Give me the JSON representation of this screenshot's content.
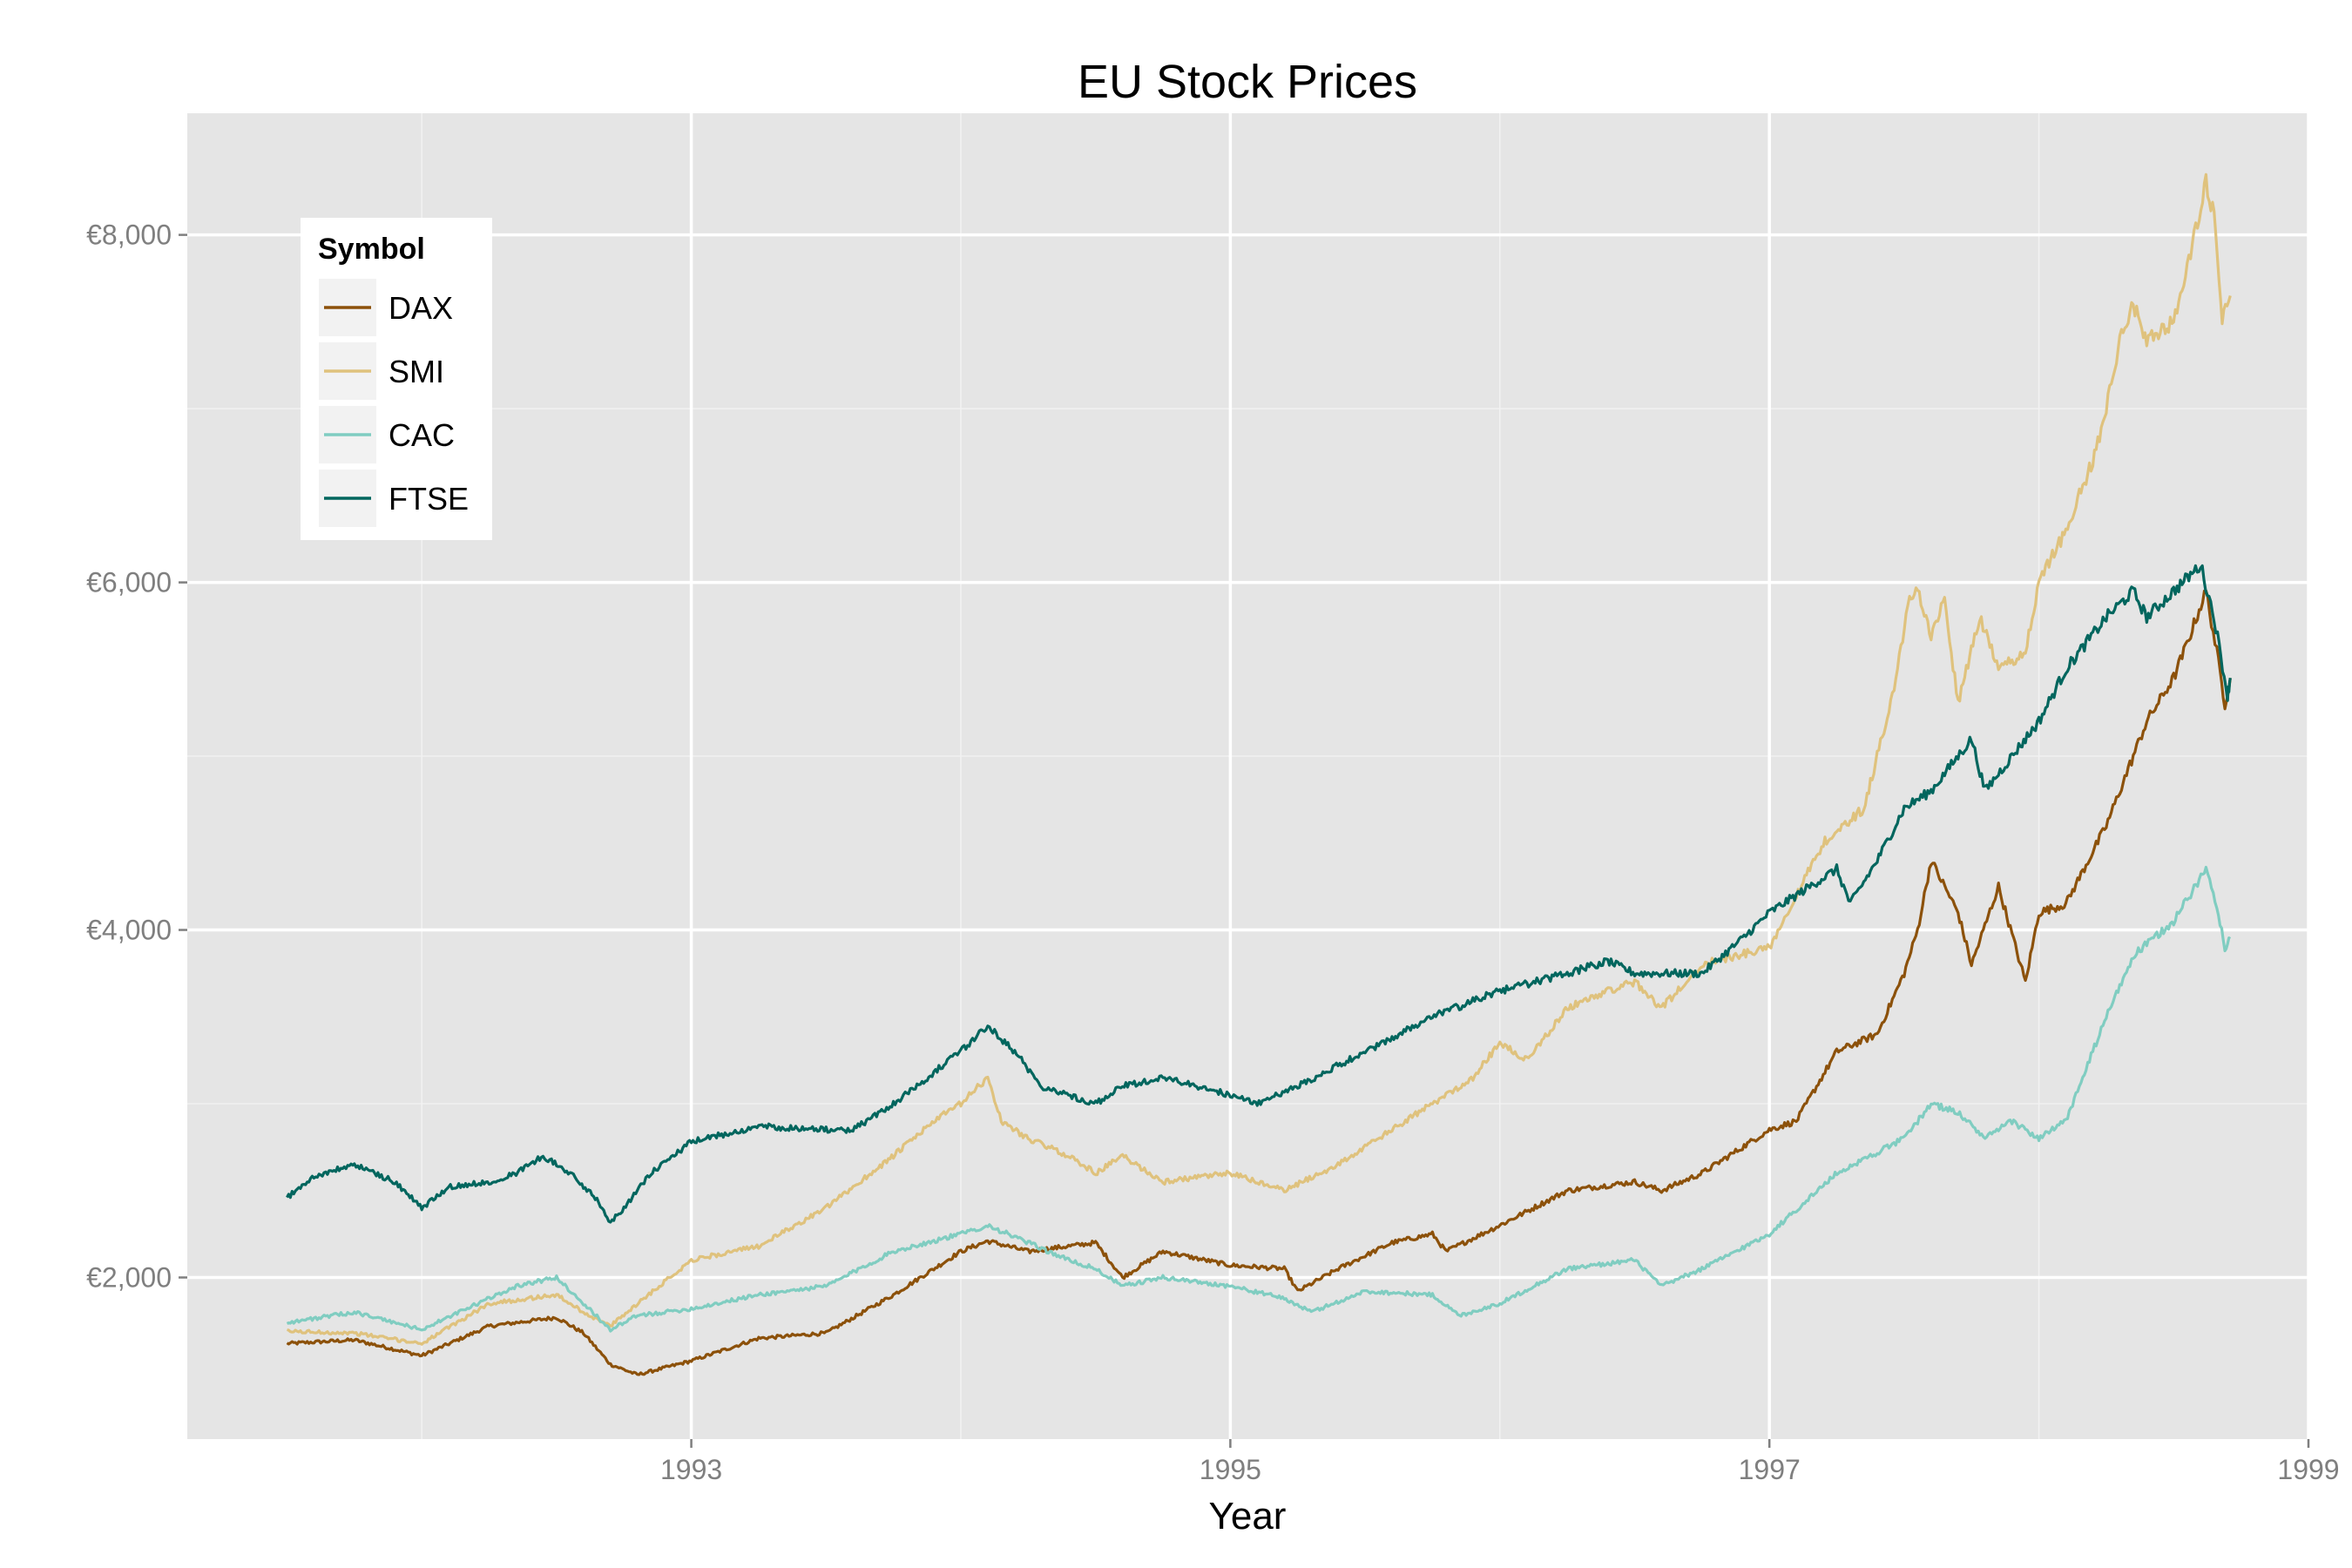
{
  "chart_data": {
    "type": "line",
    "title": "EU Stock Prices",
    "xlabel": "Year",
    "ylabel": "",
    "xlim": [
      1991.13,
      1999.0
    ],
    "ylim": [
      1070,
      8700
    ],
    "x_ticks": [
      1993,
      1995,
      1997,
      1999
    ],
    "x_tick_labels": [
      "1993",
      "1995",
      "1997",
      "1999"
    ],
    "x_minor_ticks": [
      1992,
      1994,
      1996,
      1998
    ],
    "y_ticks": [
      2000,
      4000,
      6000,
      8000
    ],
    "y_tick_labels": [
      "€2,000",
      "€4,000",
      "€6,000",
      "€8,000"
    ],
    "y_minor_ticks": [
      3000,
      5000,
      7000
    ],
    "grid": true,
    "legend": {
      "title": "Symbol",
      "position": "top-left",
      "entries": [
        "DAX",
        "SMI",
        "CAC",
        "FTSE"
      ]
    },
    "series": [
      {
        "name": "DAX",
        "color": "#8c510a",
        "points": [
          [
            1991.5,
            1620
          ],
          [
            1991.75,
            1640
          ],
          [
            1992.0,
            1550
          ],
          [
            1992.25,
            1720
          ],
          [
            1992.5,
            1770
          ],
          [
            1992.6,
            1680
          ],
          [
            1992.7,
            1500
          ],
          [
            1992.8,
            1440
          ],
          [
            1993.0,
            1520
          ],
          [
            1993.25,
            1650
          ],
          [
            1993.5,
            1680
          ],
          [
            1993.75,
            1900
          ],
          [
            1994.0,
            2150
          ],
          [
            1994.1,
            2210
          ],
          [
            1994.25,
            2150
          ],
          [
            1994.5,
            2200
          ],
          [
            1994.6,
            2000
          ],
          [
            1994.75,
            2150
          ],
          [
            1995.0,
            2070
          ],
          [
            1995.2,
            2050
          ],
          [
            1995.25,
            1920
          ],
          [
            1995.4,
            2050
          ],
          [
            1995.6,
            2200
          ],
          [
            1995.75,
            2250
          ],
          [
            1995.8,
            2150
          ],
          [
            1996.0,
            2300
          ],
          [
            1996.25,
            2500
          ],
          [
            1996.5,
            2550
          ],
          [
            1996.6,
            2500
          ],
          [
            1996.75,
            2600
          ],
          [
            1997.0,
            2850
          ],
          [
            1997.1,
            2900
          ],
          [
            1997.25,
            3300
          ],
          [
            1997.4,
            3400
          ],
          [
            1997.5,
            3750
          ],
          [
            1997.55,
            4000
          ],
          [
            1997.6,
            4400
          ],
          [
            1997.7,
            4100
          ],
          [
            1997.75,
            3800
          ],
          [
            1997.85,
            4250
          ],
          [
            1997.95,
            3700
          ],
          [
            1998.0,
            4100
          ],
          [
            1998.1,
            4150
          ],
          [
            1998.25,
            4600
          ],
          [
            1998.4,
            5200
          ],
          [
            1998.5,
            5450
          ],
          [
            1998.55,
            5650
          ],
          [
            1998.62,
            5950
          ],
          [
            1998.66,
            5600
          ],
          [
            1998.69,
            5300
          ],
          [
            1998.71,
            5450
          ]
        ]
      },
      {
        "name": "SMI",
        "color": "#dfc27d",
        "points": [
          [
            1991.5,
            1690
          ],
          [
            1991.75,
            1680
          ],
          [
            1992.0,
            1620
          ],
          [
            1992.25,
            1850
          ],
          [
            1992.5,
            1900
          ],
          [
            1992.6,
            1800
          ],
          [
            1992.7,
            1720
          ],
          [
            1992.8,
            1850
          ],
          [
            1993.0,
            2100
          ],
          [
            1993.25,
            2180
          ],
          [
            1993.5,
            2400
          ],
          [
            1993.75,
            2700
          ],
          [
            1993.9,
            2900
          ],
          [
            1994.0,
            3000
          ],
          [
            1994.1,
            3150
          ],
          [
            1994.15,
            2900
          ],
          [
            1994.25,
            2800
          ],
          [
            1994.4,
            2700
          ],
          [
            1994.5,
            2600
          ],
          [
            1994.6,
            2700
          ],
          [
            1994.75,
            2550
          ],
          [
            1995.0,
            2600
          ],
          [
            1995.2,
            2500
          ],
          [
            1995.4,
            2650
          ],
          [
            1995.6,
            2850
          ],
          [
            1995.75,
            3000
          ],
          [
            1995.9,
            3150
          ],
          [
            1996.0,
            3350
          ],
          [
            1996.1,
            3250
          ],
          [
            1996.25,
            3550
          ],
          [
            1996.4,
            3650
          ],
          [
            1996.5,
            3700
          ],
          [
            1996.6,
            3550
          ],
          [
            1996.75,
            3800
          ],
          [
            1997.0,
            3900
          ],
          [
            1997.1,
            4200
          ],
          [
            1997.2,
            4500
          ],
          [
            1997.35,
            4700
          ],
          [
            1997.45,
            5300
          ],
          [
            1997.52,
            5900
          ],
          [
            1997.55,
            5950
          ],
          [
            1997.6,
            5700
          ],
          [
            1997.65,
            5900
          ],
          [
            1997.7,
            5300
          ],
          [
            1997.78,
            5800
          ],
          [
            1997.85,
            5500
          ],
          [
            1997.95,
            5600
          ],
          [
            1998.0,
            6000
          ],
          [
            1998.1,
            6300
          ],
          [
            1998.2,
            6700
          ],
          [
            1998.25,
            7000
          ],
          [
            1998.3,
            7400
          ],
          [
            1998.35,
            7600
          ],
          [
            1998.4,
            7400
          ],
          [
            1998.5,
            7500
          ],
          [
            1998.55,
            7800
          ],
          [
            1998.62,
            8300
          ],
          [
            1998.65,
            8100
          ],
          [
            1998.68,
            7500
          ],
          [
            1998.71,
            7650
          ]
        ]
      },
      {
        "name": "CAC",
        "color": "#80cdc1",
        "points": [
          [
            1991.5,
            1740
          ],
          [
            1991.75,
            1800
          ],
          [
            1992.0,
            1700
          ],
          [
            1992.25,
            1880
          ],
          [
            1992.35,
            1950
          ],
          [
            1992.5,
            2000
          ],
          [
            1992.6,
            1850
          ],
          [
            1992.7,
            1700
          ],
          [
            1992.8,
            1780
          ],
          [
            1993.0,
            1820
          ],
          [
            1993.25,
            1900
          ],
          [
            1993.5,
            1950
          ],
          [
            1993.75,
            2150
          ],
          [
            1994.0,
            2250
          ],
          [
            1994.1,
            2300
          ],
          [
            1994.25,
            2200
          ],
          [
            1994.4,
            2100
          ],
          [
            1994.5,
            2050
          ],
          [
            1994.6,
            1950
          ],
          [
            1994.75,
            2000
          ],
          [
            1995.0,
            1950
          ],
          [
            1995.2,
            1880
          ],
          [
            1995.3,
            1800
          ],
          [
            1995.5,
            1920
          ],
          [
            1995.75,
            1900
          ],
          [
            1995.85,
            1780
          ],
          [
            1996.0,
            1850
          ],
          [
            1996.25,
            2050
          ],
          [
            1996.5,
            2100
          ],
          [
            1996.6,
            1950
          ],
          [
            1996.75,
            2050
          ],
          [
            1997.0,
            2250
          ],
          [
            1997.25,
            2600
          ],
          [
            1997.5,
            2800
          ],
          [
            1997.6,
            3000
          ],
          [
            1997.7,
            2950
          ],
          [
            1997.8,
            2800
          ],
          [
            1997.9,
            2900
          ],
          [
            1998.0,
            2800
          ],
          [
            1998.1,
            2900
          ],
          [
            1998.25,
            3500
          ],
          [
            1998.35,
            3850
          ],
          [
            1998.5,
            4050
          ],
          [
            1998.62,
            4350
          ],
          [
            1998.66,
            4150
          ],
          [
            1998.69,
            3900
          ],
          [
            1998.71,
            3950
          ]
        ]
      },
      {
        "name": "FTSE",
        "color": "#01665e",
        "points": [
          [
            1991.5,
            2460
          ],
          [
            1991.6,
            2580
          ],
          [
            1991.75,
            2650
          ],
          [
            1991.9,
            2550
          ],
          [
            1992.0,
            2400
          ],
          [
            1992.1,
            2520
          ],
          [
            1992.25,
            2550
          ],
          [
            1992.35,
            2600
          ],
          [
            1992.45,
            2700
          ],
          [
            1992.55,
            2600
          ],
          [
            1992.65,
            2450
          ],
          [
            1992.7,
            2320
          ],
          [
            1992.75,
            2400
          ],
          [
            1992.85,
            2600
          ],
          [
            1993.0,
            2780
          ],
          [
            1993.25,
            2870
          ],
          [
            1993.5,
            2850
          ],
          [
            1993.6,
            2850
          ],
          [
            1993.75,
            3000
          ],
          [
            1994.0,
            3300
          ],
          [
            1994.1,
            3450
          ],
          [
            1994.2,
            3300
          ],
          [
            1994.3,
            3100
          ],
          [
            1994.5,
            3000
          ],
          [
            1994.6,
            3100
          ],
          [
            1994.75,
            3150
          ],
          [
            1995.0,
            3050
          ],
          [
            1995.1,
            3000
          ],
          [
            1995.25,
            3100
          ],
          [
            1995.5,
            3300
          ],
          [
            1995.75,
            3500
          ],
          [
            1996.0,
            3650
          ],
          [
            1996.25,
            3750
          ],
          [
            1996.4,
            3820
          ],
          [
            1996.5,
            3750
          ],
          [
            1996.75,
            3750
          ],
          [
            1996.9,
            3950
          ],
          [
            1997.0,
            4100
          ],
          [
            1997.25,
            4350
          ],
          [
            1997.3,
            4150
          ],
          [
            1997.4,
            4400
          ],
          [
            1997.5,
            4700
          ],
          [
            1997.6,
            4800
          ],
          [
            1997.75,
            5100
          ],
          [
            1997.8,
            4800
          ],
          [
            1997.9,
            5000
          ],
          [
            1998.0,
            5200
          ],
          [
            1998.1,
            5500
          ],
          [
            1998.25,
            5800
          ],
          [
            1998.35,
            5950
          ],
          [
            1998.4,
            5800
          ],
          [
            1998.5,
            5950
          ],
          [
            1998.6,
            6100
          ],
          [
            1998.65,
            5800
          ],
          [
            1998.7,
            5350
          ],
          [
            1998.71,
            5450
          ]
        ]
      }
    ]
  }
}
